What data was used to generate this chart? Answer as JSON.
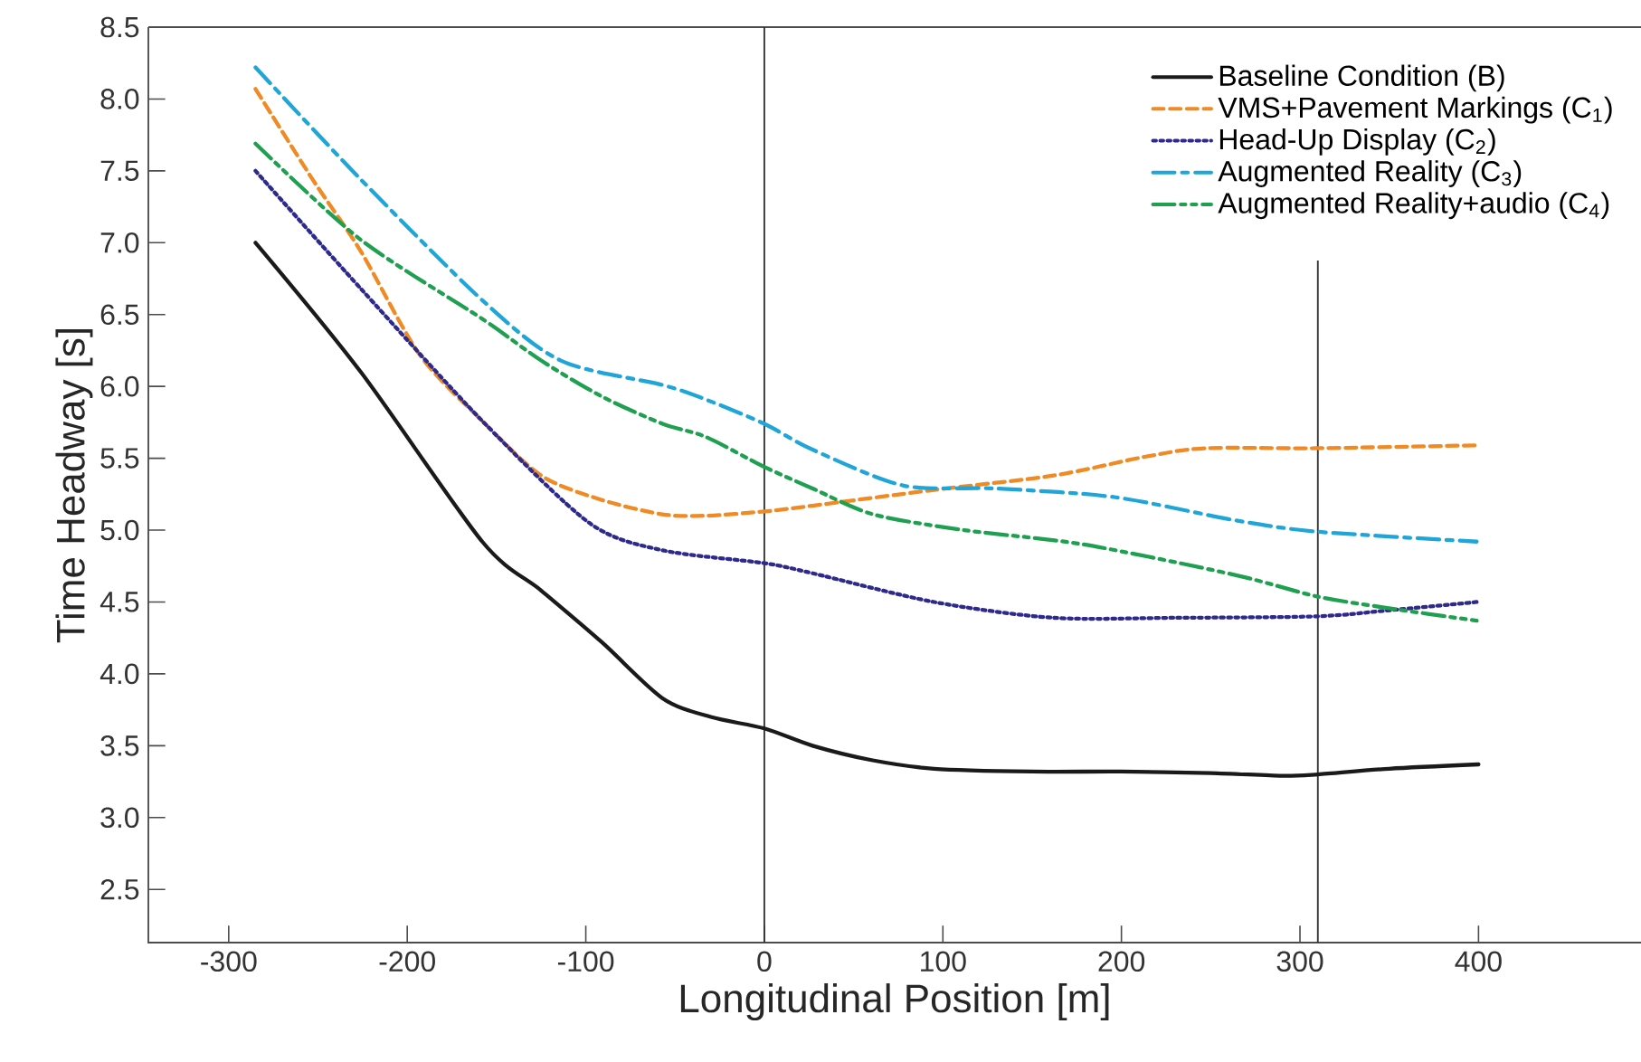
{
  "chart_data": {
    "type": "line",
    "xlabel": "Longitudinal Position [m]",
    "ylabel": "Time Headway [s]",
    "xlim": [
      -345,
      491
    ],
    "ylim": [
      2.13,
      8.5
    ],
    "xticks": [
      -300,
      -200,
      -100,
      0,
      100,
      200,
      300,
      400
    ],
    "yticks": [
      {
        "value": 2.5,
        "label": "2.5"
      },
      {
        "value": 3.0,
        "label": "3.0"
      },
      {
        "value": 3.5,
        "label": "3.5"
      },
      {
        "value": 4.0,
        "label": "4.0"
      },
      {
        "value": 4.5,
        "label": "4.5"
      },
      {
        "value": 5.0,
        "label": "5.0"
      },
      {
        "value": 5.5,
        "label": "5.5"
      },
      {
        "value": 6.0,
        "label": "6.0"
      },
      {
        "value": 6.5,
        "label": "6.5"
      },
      {
        "value": 7.0,
        "label": "7.0"
      },
      {
        "value": 7.5,
        "label": "7.5"
      },
      {
        "value": 8.0,
        "label": "8.0"
      },
      {
        "value": 8.5,
        "label": "8.5"
      }
    ],
    "legend": "top right",
    "grid": false,
    "marker": "none",
    "ref_lines": [
      {
        "axis": "x",
        "value": 0,
        "color": "#333333"
      },
      {
        "axis": "x",
        "value": 310,
        "color": "#333333"
      }
    ],
    "series": [
      {
        "name": "Baseline Condition (B)",
        "color": "#1a1a1a",
        "line_style": "solid",
        "x": [
          -285,
          -226,
          -158,
          -125,
          -91,
          -57,
          -30,
          0,
          27,
          60,
          95,
          150,
          200,
          250,
          290,
          310,
          350,
          400
        ],
        "values": [
          7.0,
          6.1,
          4.92,
          4.58,
          4.22,
          3.83,
          3.7,
          3.62,
          3.5,
          3.4,
          3.34,
          3.32,
          3.32,
          3.31,
          3.29,
          3.3,
          3.34,
          3.37
        ]
      },
      {
        "name": "VMS+Pavement Markings (C$_{1}$)",
        "color": "#f08a24",
        "line_style": "dashed",
        "x": [
          -285,
          -253,
          -226,
          -193,
          -158,
          -125,
          -91,
          -57,
          -33,
          0,
          27,
          95,
          162,
          213,
          247,
          309,
          399
        ],
        "values": [
          8.07,
          7.44,
          6.94,
          6.22,
          5.76,
          5.38,
          5.21,
          5.11,
          5.1,
          5.13,
          5.17,
          5.28,
          5.38,
          5.51,
          5.57,
          5.57,
          5.59
        ]
      },
      {
        "name": "Head-Up Display (C$_{2}$)",
        "color": "#2e2a8c",
        "line_style": "dotted",
        "x": [
          -285,
          -226,
          -158,
          -98,
          -57,
          0,
          27,
          95,
          162,
          230,
          309,
          348,
          399
        ],
        "values": [
          7.5,
          6.68,
          5.76,
          5.05,
          4.86,
          4.77,
          4.7,
          4.5,
          4.39,
          4.39,
          4.4,
          4.44,
          4.5
        ]
      },
      {
        "name": "Augmented Reality (C$_{3}$)",
        "color": "#1fa5d8",
        "line_style": "dashdot",
        "x": [
          -285,
          -226,
          -158,
          -114,
          -57,
          -33,
          0,
          27,
          78,
          129,
          196,
          263,
          309,
          399
        ],
        "values": [
          8.22,
          7.44,
          6.6,
          6.18,
          6.01,
          5.91,
          5.74,
          5.56,
          5.31,
          5.29,
          5.23,
          5.07,
          4.99,
          4.92
        ]
      },
      {
        "name": "Augmented Reality+audio (C$_{4}$)",
        "color": "#1fa050",
        "line_style": "dashdotdot",
        "x": [
          -285,
          -226,
          -158,
          -125,
          -91,
          -57,
          -33,
          0,
          27,
          61,
          112,
          179,
          263,
          309,
          348,
          399
        ],
        "values": [
          7.69,
          7.02,
          6.47,
          6.18,
          5.93,
          5.74,
          5.65,
          5.44,
          5.29,
          5.11,
          5.0,
          4.9,
          4.69,
          4.54,
          4.46,
          4.37
        ]
      }
    ]
  }
}
